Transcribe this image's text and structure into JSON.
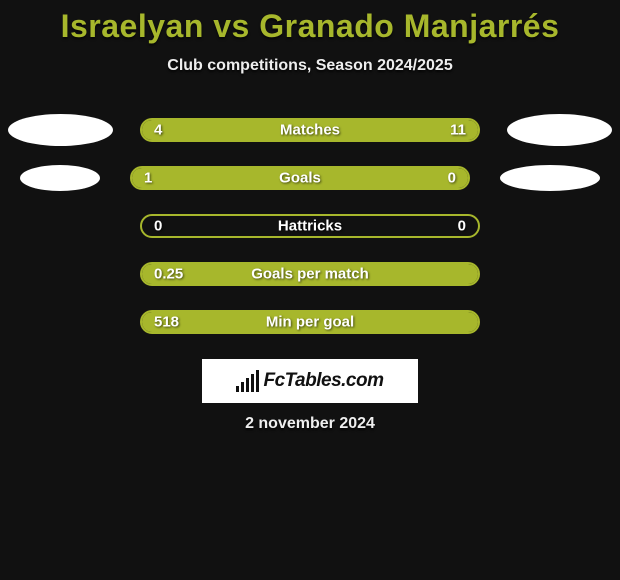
{
  "title": "Israelyan vs Granado Manjarrés",
  "subtitle": "Club competitions, Season 2024/2025",
  "date": "2 november 2024",
  "logo_text": "FcTables.com",
  "colors": {
    "accent": "#a7b72c",
    "background": "#111111",
    "bar_border": "#a7b72c",
    "text_light": "#ffffff",
    "logo_bg": "#ffffff"
  },
  "stats": [
    {
      "label": "Matches",
      "left_value": "4",
      "right_value": "11",
      "left_pct": 26.7,
      "right_pct": 73.3,
      "show_avatars": true
    },
    {
      "label": "Goals",
      "left_value": "1",
      "right_value": "0",
      "left_pct": 80,
      "right_pct": 20,
      "show_avatars": true
    },
    {
      "label": "Hattricks",
      "left_value": "0",
      "right_value": "0",
      "left_pct": 0,
      "right_pct": 0,
      "show_avatars": false
    },
    {
      "label": "Goals per match",
      "left_value": "0.25",
      "right_value": "",
      "left_pct": 100,
      "right_pct": 0,
      "show_avatars": false
    },
    {
      "label": "Min per goal",
      "left_value": "518",
      "right_value": "",
      "left_pct": 100,
      "right_pct": 0,
      "show_avatars": false
    }
  ]
}
